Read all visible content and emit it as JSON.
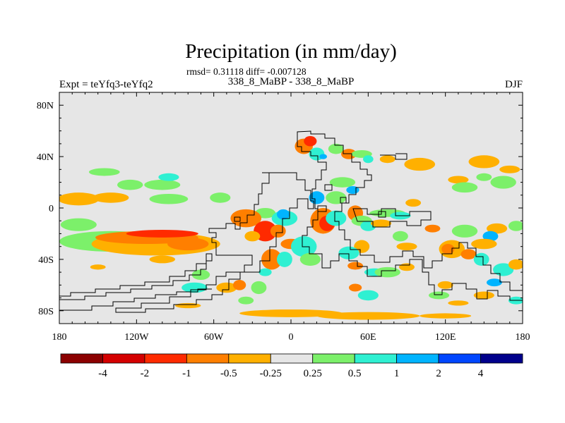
{
  "title": "Precipitation (in mm/day)",
  "subtitle": "rmsd= 0.31118 diff= -0.007128",
  "left_label": "Expt = teYfq3-teYfq2",
  "center_label": "338_8_MaBP - 338_8_MaBP",
  "right_label": "DJF",
  "chart_data": {
    "type": "heatmap",
    "title": "Precipitation (in mm/day)",
    "subtitle": "rmsd= 0.31118 diff= -0.007128",
    "xlim": [
      -180,
      180
    ],
    "ylim": [
      -90,
      90
    ],
    "x_ticks": [
      {
        "value": -180,
        "label": "180"
      },
      {
        "value": -120,
        "label": "120W"
      },
      {
        "value": -60,
        "label": "60W"
      },
      {
        "value": 0,
        "label": "0"
      },
      {
        "value": 60,
        "label": "60E"
      },
      {
        "value": 120,
        "label": "120E"
      },
      {
        "value": 180,
        "label": "180"
      }
    ],
    "y_ticks": [
      {
        "value": 80,
        "label": "80N"
      },
      {
        "value": 40,
        "label": "40N"
      },
      {
        "value": 0,
        "label": "0"
      },
      {
        "value": -40,
        "label": "40S"
      },
      {
        "value": -80,
        "label": "80S"
      }
    ],
    "background_color": "#e6e6e6",
    "colorbar": {
      "levels": [
        "-4",
        "-2",
        "-1",
        "-0.5",
        "-0.25",
        "0.25",
        "0.5",
        "1",
        "2",
        "4"
      ],
      "colors": [
        "#8b0000",
        "#d40000",
        "#ff2a00",
        "#ff7f00",
        "#ffb000",
        "#e6e6e6",
        "#7cf06a",
        "#2ff0d2",
        "#00b4ff",
        "#0046ff",
        "#00008b"
      ]
    },
    "anomalies": [
      {
        "lon": -145,
        "lat": 28,
        "rx": 12,
        "ry": 3,
        "level": 6
      },
      {
        "lon": -125,
        "lat": 18,
        "rx": 10,
        "ry": 4,
        "level": 6
      },
      {
        "lon": -100,
        "lat": 18,
        "rx": 14,
        "ry": 4,
        "level": 6
      },
      {
        "lon": -95,
        "lat": 24,
        "rx": 8,
        "ry": 3,
        "level": 7
      },
      {
        "lon": -165,
        "lat": 7,
        "rx": 16,
        "ry": 5,
        "level": 4
      },
      {
        "lon": -140,
        "lat": 8,
        "rx": 14,
        "ry": 4,
        "level": 4
      },
      {
        "lon": -95,
        "lat": 7,
        "rx": 15,
        "ry": 4,
        "level": 6
      },
      {
        "lon": -55,
        "lat": 8,
        "rx": 8,
        "ry": 4,
        "level": 6
      },
      {
        "lon": -165,
        "lat": -13,
        "rx": 14,
        "ry": 5,
        "level": 6
      },
      {
        "lon": -140,
        "lat": -26,
        "rx": 40,
        "ry": 8,
        "level": 6
      },
      {
        "lon": -105,
        "lat": -28,
        "rx": 50,
        "ry": 9,
        "level": 4
      },
      {
        "lon": -112,
        "lat": -23,
        "rx": 40,
        "ry": 5,
        "level": 3
      },
      {
        "lon": -100,
        "lat": -20,
        "rx": 28,
        "ry": 3,
        "level": 2
      },
      {
        "lon": -80,
        "lat": -28,
        "rx": 16,
        "ry": 5,
        "level": 3
      },
      {
        "lon": -100,
        "lat": -40,
        "rx": 10,
        "ry": 3,
        "level": 4
      },
      {
        "lon": -150,
        "lat": -46,
        "rx": 6,
        "ry": 2,
        "level": 4
      },
      {
        "lon": -70,
        "lat": -52,
        "rx": 7,
        "ry": 4,
        "level": 6
      },
      {
        "lon": -75,
        "lat": -62,
        "rx": 10,
        "ry": 4,
        "level": 7
      },
      {
        "lon": -50,
        "lat": -62,
        "rx": 8,
        "ry": 4,
        "level": 4
      },
      {
        "lon": -40,
        "lat": -60,
        "rx": 5,
        "ry": 4,
        "level": 3
      },
      {
        "lon": -35,
        "lat": -72,
        "rx": 6,
        "ry": 3,
        "level": 6
      },
      {
        "lon": -80,
        "lat": -76,
        "rx": 10,
        "ry": 2,
        "level": 4
      },
      {
        "lon": -20,
        "lat": -4,
        "rx": 8,
        "ry": 4,
        "level": 6
      },
      {
        "lon": -35,
        "lat": -8,
        "rx": 12,
        "ry": 7,
        "level": 3
      },
      {
        "lon": -20,
        "lat": -18,
        "rx": 9,
        "ry": 8,
        "level": 2
      },
      {
        "lon": -30,
        "lat": -22,
        "rx": 6,
        "ry": 4,
        "level": 4
      },
      {
        "lon": -5,
        "lat": -8,
        "rx": 10,
        "ry": 6,
        "level": 7
      },
      {
        "lon": -6,
        "lat": -5,
        "rx": 5,
        "ry": 4,
        "level": 8
      },
      {
        "lon": -10,
        "lat": -18,
        "rx": 6,
        "ry": 5,
        "level": 3
      },
      {
        "lon": 0,
        "lat": -28,
        "rx": 8,
        "ry": 4,
        "level": 3
      },
      {
        "lon": -15,
        "lat": -40,
        "rx": 8,
        "ry": 8,
        "level": 3
      },
      {
        "lon": -5,
        "lat": -40,
        "rx": 6,
        "ry": 6,
        "level": 7
      },
      {
        "lon": -20,
        "lat": -50,
        "rx": 5,
        "ry": 3,
        "level": 7
      },
      {
        "lon": -25,
        "lat": -62,
        "rx": 6,
        "ry": 5,
        "level": 6
      },
      {
        "lon": 10,
        "lat": -30,
        "rx": 10,
        "ry": 8,
        "level": 7
      },
      {
        "lon": 15,
        "lat": -40,
        "rx": 8,
        "ry": 5,
        "level": 6
      },
      {
        "lon": 25,
        "lat": -10,
        "rx": 10,
        "ry": 10,
        "level": 3
      },
      {
        "lon": 28,
        "lat": -12,
        "rx": 6,
        "ry": 6,
        "level": 2
      },
      {
        "lon": 20,
        "lat": 8,
        "rx": 6,
        "ry": 5,
        "level": 8
      },
      {
        "lon": 35,
        "lat": -8,
        "rx": 8,
        "ry": 6,
        "level": 7
      },
      {
        "lon": 35,
        "lat": 8,
        "rx": 8,
        "ry": 5,
        "level": 6
      },
      {
        "lon": 40,
        "lat": 20,
        "rx": 10,
        "ry": 4,
        "level": 6
      },
      {
        "lon": 48,
        "lat": 14,
        "rx": 5,
        "ry": 3,
        "level": 8
      },
      {
        "lon": 50,
        "lat": -4,
        "rx": 6,
        "ry": 6,
        "level": 3
      },
      {
        "lon": 55,
        "lat": -10,
        "rx": 8,
        "ry": 4,
        "level": 6
      },
      {
        "lon": 60,
        "lat": -14,
        "rx": 6,
        "ry": 4,
        "level": 7
      },
      {
        "lon": 70,
        "lat": -12,
        "rx": 8,
        "ry": 3,
        "level": 4
      },
      {
        "lon": 75,
        "lat": -4,
        "rx": 14,
        "ry": 3,
        "level": 6
      },
      {
        "lon": 85,
        "lat": -6,
        "rx": 8,
        "ry": 3,
        "level": 7
      },
      {
        "lon": 55,
        "lat": -30,
        "rx": 6,
        "ry": 5,
        "level": 4
      },
      {
        "lon": 45,
        "lat": -35,
        "rx": 8,
        "ry": 5,
        "level": 7
      },
      {
        "lon": 50,
        "lat": -45,
        "rx": 6,
        "ry": 3,
        "level": 3
      },
      {
        "lon": 65,
        "lat": -50,
        "rx": 8,
        "ry": 3,
        "level": 7
      },
      {
        "lon": 75,
        "lat": -50,
        "rx": 10,
        "ry": 4,
        "level": 6
      },
      {
        "lon": 90,
        "lat": -46,
        "rx": 6,
        "ry": 3,
        "level": 4
      },
      {
        "lon": 90,
        "lat": -30,
        "rx": 8,
        "ry": 3,
        "level": 4
      },
      {
        "lon": 85,
        "lat": -22,
        "rx": 6,
        "ry": 4,
        "level": 6
      },
      {
        "lon": 60,
        "lat": -68,
        "rx": 8,
        "ry": 4,
        "level": 7
      },
      {
        "lon": 50,
        "lat": -62,
        "rx": 5,
        "ry": 3,
        "level": 3
      },
      {
        "lon": 10,
        "lat": 48,
        "rx": 7,
        "ry": 6,
        "level": 3
      },
      {
        "lon": 15,
        "lat": 52,
        "rx": 5,
        "ry": 4,
        "level": 2
      },
      {
        "lon": 20,
        "lat": 42,
        "rx": 6,
        "ry": 5,
        "level": 7
      },
      {
        "lon": 25,
        "lat": 40,
        "rx": 3,
        "ry": 2,
        "level": 8
      },
      {
        "lon": 35,
        "lat": 46,
        "rx": 6,
        "ry": 4,
        "level": 6
      },
      {
        "lon": 45,
        "lat": 42,
        "rx": 6,
        "ry": 4,
        "level": 3
      },
      {
        "lon": 55,
        "lat": 42,
        "rx": 8,
        "ry": 3,
        "level": 6
      },
      {
        "lon": 60,
        "lat": 38,
        "rx": 4,
        "ry": 3,
        "level": 7
      },
      {
        "lon": 75,
        "lat": 38,
        "rx": 6,
        "ry": 3,
        "level": 4
      },
      {
        "lon": 100,
        "lat": 34,
        "rx": 12,
        "ry": 5,
        "level": 4
      },
      {
        "lon": 150,
        "lat": 36,
        "rx": 12,
        "ry": 5,
        "level": 4
      },
      {
        "lon": 130,
        "lat": 22,
        "rx": 8,
        "ry": 3,
        "level": 4
      },
      {
        "lon": 135,
        "lat": 16,
        "rx": 10,
        "ry": 4,
        "level": 6
      },
      {
        "lon": 165,
        "lat": 20,
        "rx": 10,
        "ry": 5,
        "level": 6
      },
      {
        "lon": 150,
        "lat": 24,
        "rx": 6,
        "ry": 3,
        "level": 6
      },
      {
        "lon": 170,
        "lat": 30,
        "rx": 8,
        "ry": 3,
        "level": 4
      },
      {
        "lon": 95,
        "lat": 4,
        "rx": 6,
        "ry": 3,
        "level": 4
      },
      {
        "lon": 110,
        "lat": -16,
        "rx": 6,
        "ry": 3,
        "level": 3
      },
      {
        "lon": 135,
        "lat": -18,
        "rx": 10,
        "ry": 5,
        "level": 6
      },
      {
        "lon": 160,
        "lat": -16,
        "rx": 8,
        "ry": 4,
        "level": 4
      },
      {
        "lon": 175,
        "lat": -14,
        "rx": 6,
        "ry": 4,
        "level": 6
      },
      {
        "lon": 155,
        "lat": -22,
        "rx": 6,
        "ry": 4,
        "level": 8
      },
      {
        "lon": 150,
        "lat": -28,
        "rx": 10,
        "ry": 4,
        "level": 4
      },
      {
        "lon": 125,
        "lat": -32,
        "rx": 10,
        "ry": 7,
        "level": 4
      },
      {
        "lon": 122,
        "lat": -32,
        "rx": 5,
        "ry": 4,
        "level": 3
      },
      {
        "lon": 138,
        "lat": -36,
        "rx": 6,
        "ry": 4,
        "level": 3
      },
      {
        "lon": 148,
        "lat": -40,
        "rx": 6,
        "ry": 5,
        "level": 7
      },
      {
        "lon": 165,
        "lat": -48,
        "rx": 8,
        "ry": 5,
        "level": 7
      },
      {
        "lon": 175,
        "lat": -44,
        "rx": 6,
        "ry": 4,
        "level": 4
      },
      {
        "lon": 158,
        "lat": -58,
        "rx": 6,
        "ry": 3,
        "level": 8
      },
      {
        "lon": 150,
        "lat": -68,
        "rx": 8,
        "ry": 3,
        "level": 4
      },
      {
        "lon": 175,
        "lat": -72,
        "rx": 6,
        "ry": 3,
        "level": 7
      },
      {
        "lon": 115,
        "lat": -68,
        "rx": 8,
        "ry": 3,
        "level": 6
      },
      {
        "lon": 120,
        "lat": -60,
        "rx": 6,
        "ry": 3,
        "level": 4
      },
      {
        "lon": 130,
        "lat": -74,
        "rx": 8,
        "ry": 2,
        "level": 4
      },
      {
        "lon": 0,
        "lat": -82,
        "rx": 40,
        "ry": 3,
        "level": 4
      },
      {
        "lon": 60,
        "lat": -84,
        "rx": 40,
        "ry": 3,
        "level": 4
      },
      {
        "lon": 120,
        "lat": -84,
        "rx": 20,
        "ry": 2,
        "level": 4
      }
    ]
  }
}
